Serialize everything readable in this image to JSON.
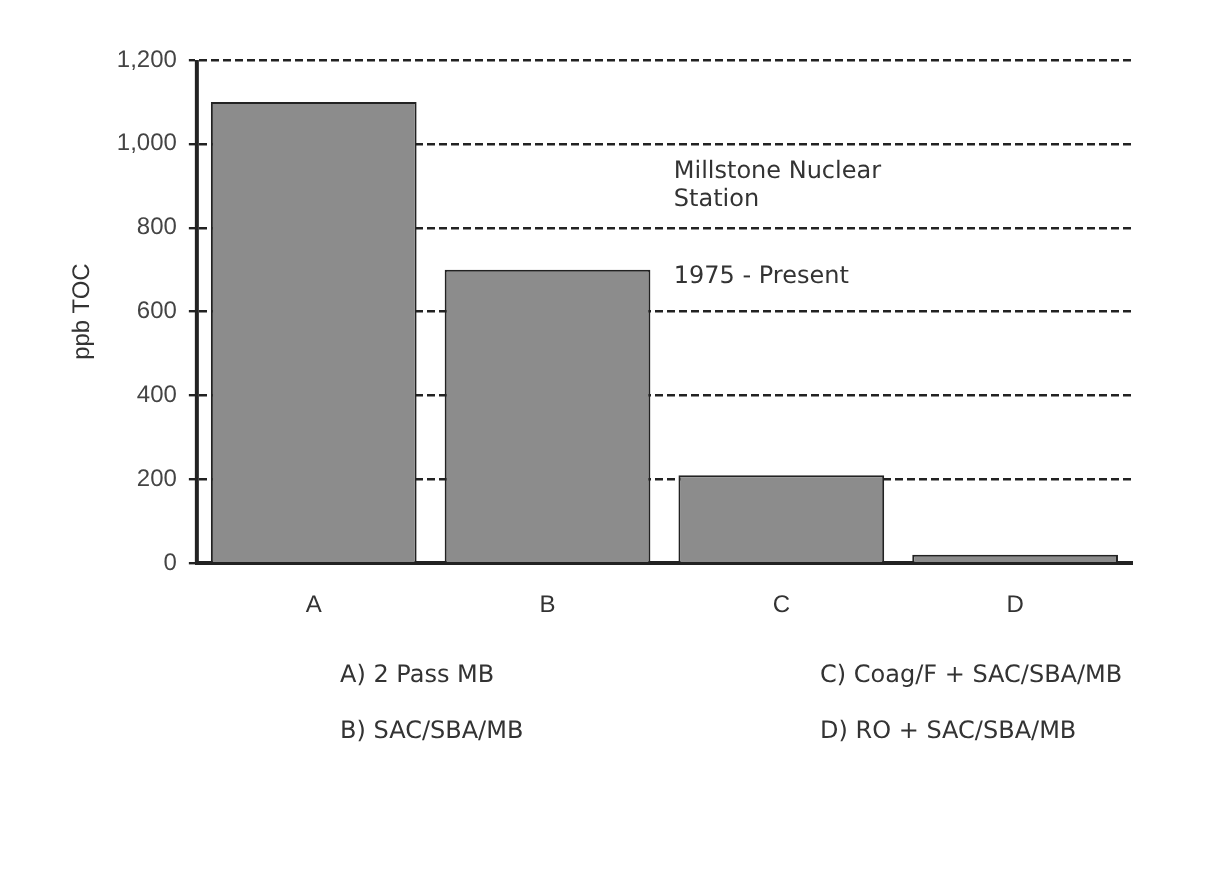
{
  "chart_data": {
    "type": "bar",
    "ylabel": "ppb TOC",
    "categories": [
      "A",
      "B",
      "C",
      "D"
    ],
    "values": [
      1100,
      700,
      210,
      20
    ],
    "color": "#8c8c8c",
    "ylim": [
      0,
      1200
    ],
    "yticks": [
      0,
      {
        "value": 200,
        "label": "200"
      },
      {
        "value": 400,
        "label": "400"
      },
      {
        "value": 600,
        "label": "600"
      },
      {
        "value": 800,
        "label": "800"
      },
      {
        "value": 1000,
        "label": "1,000"
      },
      {
        "value": 1200,
        "label": "1,200"
      }
    ],
    "grid": "y",
    "line_style": "dashed",
    "annotations": [
      "Millstone Nuclear Station",
      "1975 - Present",
      "A) 2 Pass MB",
      "B) SAC/SBA/MB",
      "C) Coag/F + SAC/SBA/MB",
      "D) RO + SAC/SBA/MB"
    ]
  }
}
